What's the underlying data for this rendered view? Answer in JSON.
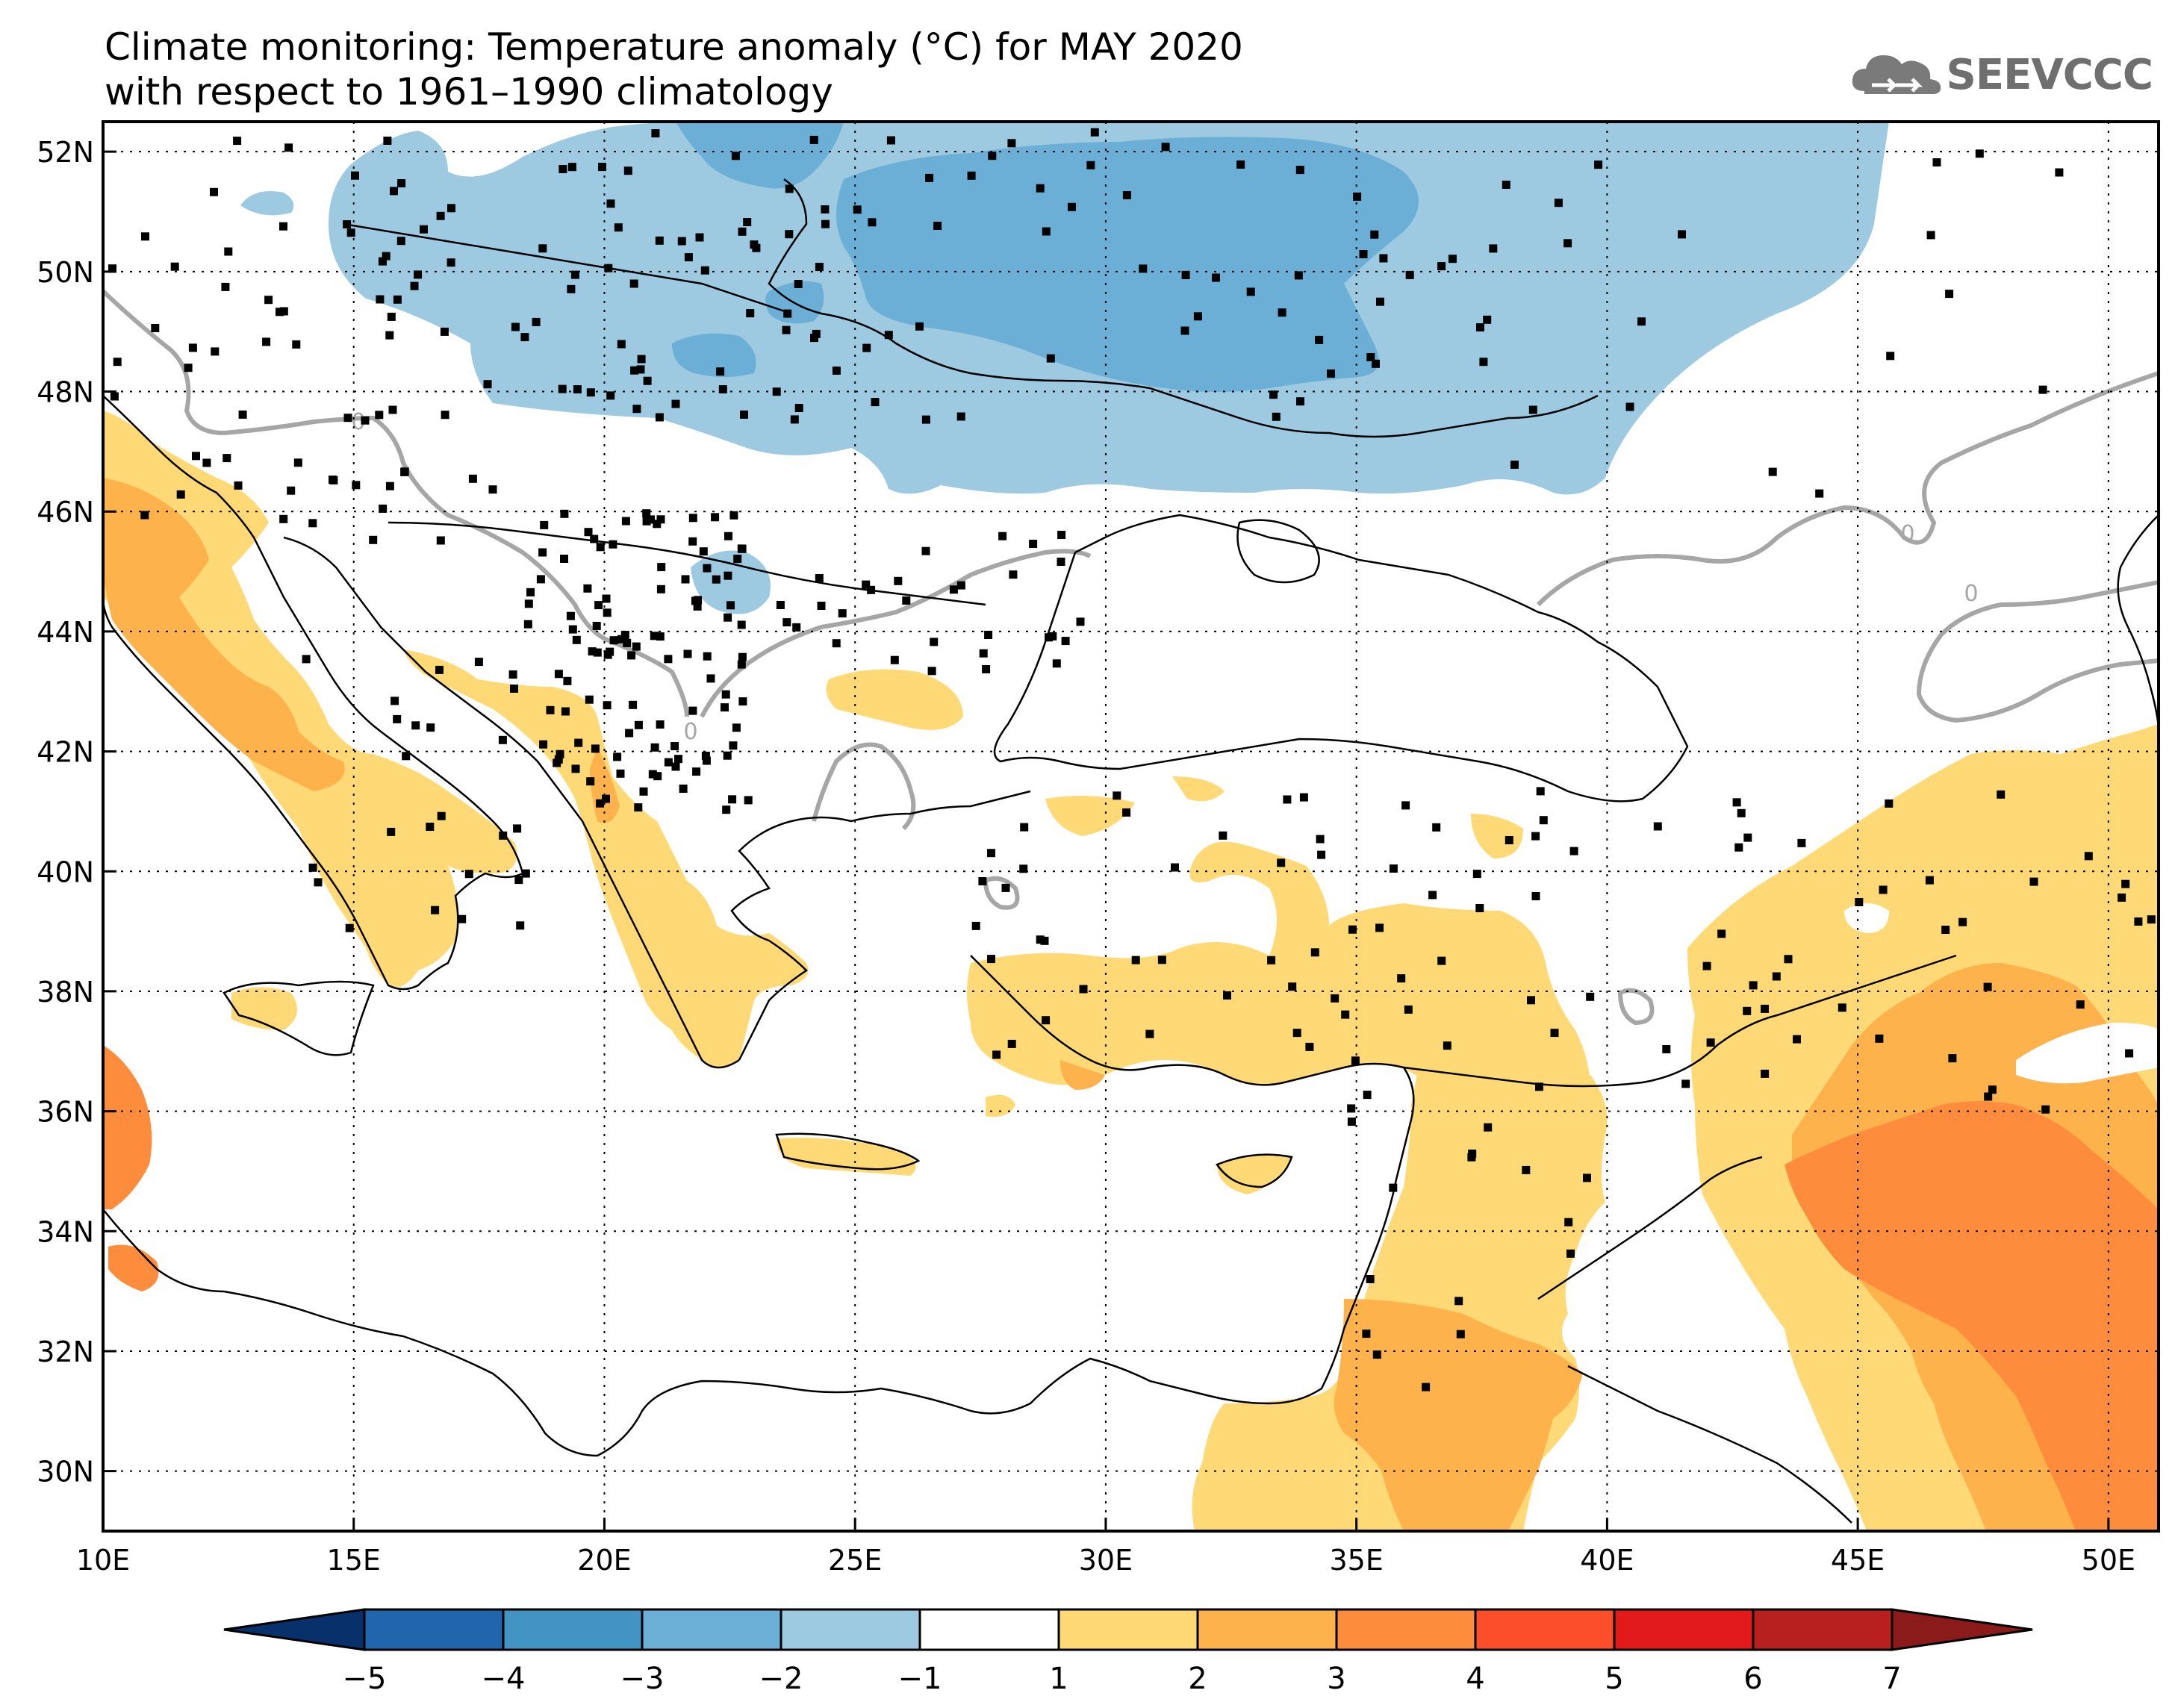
{
  "title": {
    "line1": "Climate monitoring: Temperature anomaly (°C) for MAY 2020",
    "line2": "with respect to 1961–1990 climatology"
  },
  "logo": {
    "text": "SEEVCCC",
    "icon": "cloud-icon"
  },
  "map": {
    "lon_ticks": [
      "10E",
      "15E",
      "20E",
      "25E",
      "30E",
      "35E",
      "40E",
      "45E",
      "50E"
    ],
    "lat_ticks": [
      "52N",
      "50N",
      "48N",
      "46N",
      "44N",
      "42N",
      "40N",
      "38N",
      "36N",
      "34N",
      "32N",
      "30N"
    ],
    "lon_range": [
      10,
      51
    ],
    "lat_range": [
      29,
      52.5
    ],
    "contour_label": "0"
  },
  "colorbar": {
    "labels": [
      "−5",
      "−4",
      "−3",
      "−2",
      "−1",
      "1",
      "2",
      "3",
      "4",
      "5",
      "6",
      "7"
    ],
    "colors": [
      "#08306b",
      "#2166ac",
      "#4393c3",
      "#6baed6",
      "#9ecae1",
      "#ffffff",
      "#fed976",
      "#feb24c",
      "#fd8d3c",
      "#fc4e2a",
      "#e31a1c",
      "#b81f1f",
      "#8b1a1a"
    ]
  }
}
